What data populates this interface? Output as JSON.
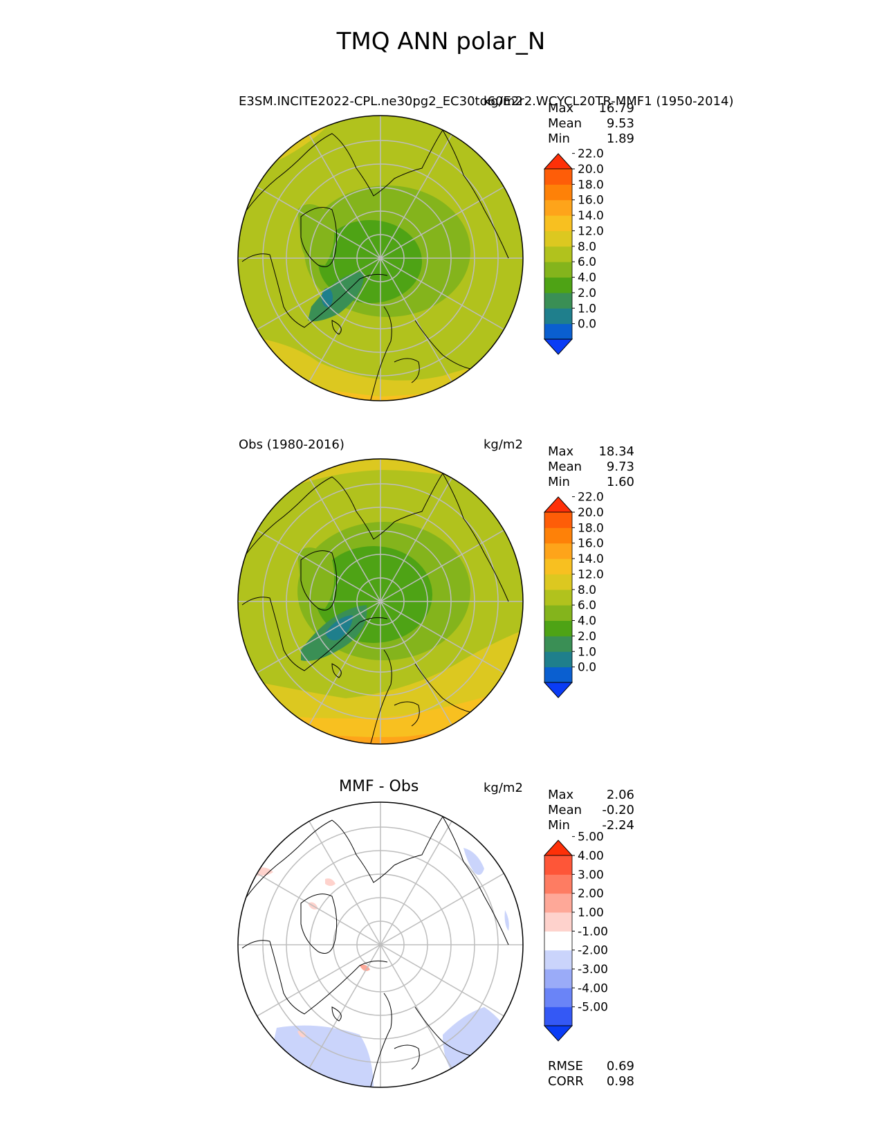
{
  "figure_title": "TMQ ANN polar_N",
  "panels": [
    {
      "title_left": "E3SM.INCITE2022-CPL.ne30pg2_EC30to60E2r2.WCYCL20TR-MMF1 (1950-2014)",
      "title_center": "",
      "units": "kg/m2",
      "stats": {
        "max_label": "Max",
        "max": "16.79",
        "mean_label": "Mean",
        "mean": "9.53",
        "min_label": "Min",
        "min": "1.89"
      },
      "colorbar_ticks": [
        "0.0",
        "1.0",
        "2.0",
        "4.0",
        "6.0",
        "8.0",
        "12.0",
        "14.0",
        "16.0",
        "18.0",
        "20.0",
        "22.0"
      ]
    },
    {
      "title_left": "Obs (1980-2016)",
      "title_center": "",
      "units": "kg/m2",
      "stats": {
        "max_label": "Max",
        "max": "18.34",
        "mean_label": "Mean",
        "mean": "9.73",
        "min_label": "Min",
        "min": "1.60"
      },
      "colorbar_ticks": [
        "0.0",
        "1.0",
        "2.0",
        "4.0",
        "6.0",
        "8.0",
        "12.0",
        "14.0",
        "16.0",
        "18.0",
        "20.0",
        "22.0"
      ]
    },
    {
      "title_left": "",
      "title_center": "MMF - Obs",
      "units": "kg/m2",
      "stats": {
        "max_label": "Max",
        "max": "2.06",
        "mean_label": "Mean",
        "mean": "-0.20",
        "min_label": "Min",
        "min": "-2.24"
      },
      "colorbar_ticks": [
        "-5.00",
        "-4.00",
        "-3.00",
        "-2.00",
        "-1.00",
        "1.00",
        "2.00",
        "3.00",
        "4.00",
        "5.00"
      ],
      "rmse_label": "RMSE",
      "rmse": "0.69",
      "corr_label": "CORR",
      "corr": "0.98"
    }
  ],
  "chart_data": [
    {
      "type": "heatmap",
      "projection": "north polar stereographic",
      "title": "E3SM.INCITE2022-CPL.ne30pg2_EC30to60E2r2.WCYCL20TR-MMF1 (1950-2014)",
      "units": "kg/m2",
      "max": 16.79,
      "mean": 9.53,
      "min": 1.89,
      "levels": [
        0,
        1,
        2,
        4,
        6,
        8,
        12,
        14,
        16,
        18,
        20,
        22
      ],
      "colors": [
        "#0a3cf5",
        "#0a5fd0",
        "#1f7f8c",
        "#3a8f55",
        "#4ea315",
        "#84b41c",
        "#b1c21d",
        "#dcc820",
        "#f8c020",
        "#fea41a",
        "#fe8108",
        "#fe5d08",
        "#fe3008"
      ],
      "extend": "both",
      "colorbar_position": "right"
    },
    {
      "type": "heatmap",
      "projection": "north polar stereographic",
      "title": "Obs (1980-2016)",
      "units": "kg/m2",
      "max": 18.34,
      "mean": 9.73,
      "min": 1.6,
      "levels": [
        0,
        1,
        2,
        4,
        6,
        8,
        12,
        14,
        16,
        18,
        20,
        22
      ],
      "colors": [
        "#0a3cf5",
        "#0a5fd0",
        "#1f7f8c",
        "#3a8f55",
        "#4ea315",
        "#84b41c",
        "#b1c21d",
        "#dcc820",
        "#f8c020",
        "#fea41a",
        "#fe8108",
        "#fe5d08",
        "#fe3008"
      ],
      "extend": "both",
      "colorbar_position": "right"
    },
    {
      "type": "heatmap",
      "projection": "north polar stereographic",
      "title": "MMF - Obs",
      "units": "kg/m2",
      "max": 2.06,
      "mean": -0.2,
      "min": -2.24,
      "rmse": 0.69,
      "corr": 0.98,
      "levels": [
        -5,
        -4,
        -3,
        -2,
        -1,
        1,
        2,
        3,
        4,
        5
      ],
      "colors": [
        "#0a3cf5",
        "#3458f5",
        "#6a84f7",
        "#9aabf8",
        "#cad4fb",
        "#ffffff",
        "#fed2cc",
        "#fea898",
        "#fe7c62",
        "#fe5638",
        "#fe3008"
      ],
      "extend": "both",
      "colorbar_position": "right"
    }
  ]
}
